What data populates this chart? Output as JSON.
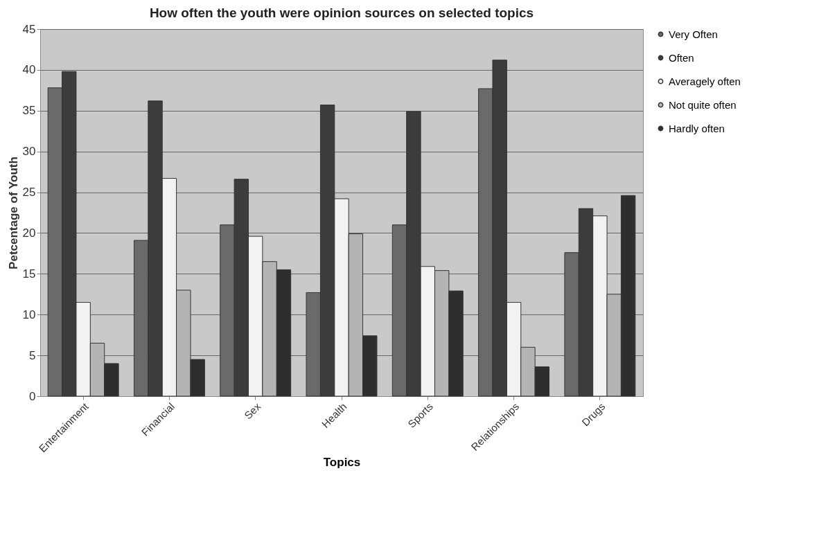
{
  "chart_data": {
    "type": "bar",
    "title": "How often the youth were opinion sources on selected topics",
    "xlabel": "Topics",
    "ylabel": "Petcentage of Youth",
    "categories": [
      "Entertainment",
      "Financial",
      "Sex",
      "Health",
      "Sports",
      "Relationships",
      "Drugs"
    ],
    "series": [
      {
        "name": "Very Often",
        "color": "#6a6a6a",
        "values": [
          37.8,
          19.1,
          21.0,
          12.7,
          21.0,
          37.7,
          17.6
        ]
      },
      {
        "name": "Often",
        "color": "#3c3c3c",
        "values": [
          39.8,
          36.2,
          26.6,
          35.7,
          34.9,
          41.2,
          23.0
        ]
      },
      {
        "name": "Averagely often",
        "color": "#f2f2f2",
        "values": [
          11.5,
          26.7,
          19.6,
          24.2,
          15.9,
          11.5,
          22.1
        ]
      },
      {
        "name": "Not quite often",
        "color": "#b4b4b4",
        "values": [
          6.5,
          13.0,
          16.5,
          19.9,
          15.4,
          6.0,
          12.5
        ]
      },
      {
        "name": "Hardly often",
        "color": "#2e2e2e",
        "values": [
          4.0,
          4.5,
          15.5,
          7.4,
          12.9,
          3.6,
          24.6
        ]
      }
    ],
    "ylim": [
      0,
      45
    ],
    "yticks": [
      0,
      5,
      10,
      15,
      20,
      25,
      30,
      35,
      40,
      45
    ],
    "grid": "y",
    "legend": "right"
  }
}
